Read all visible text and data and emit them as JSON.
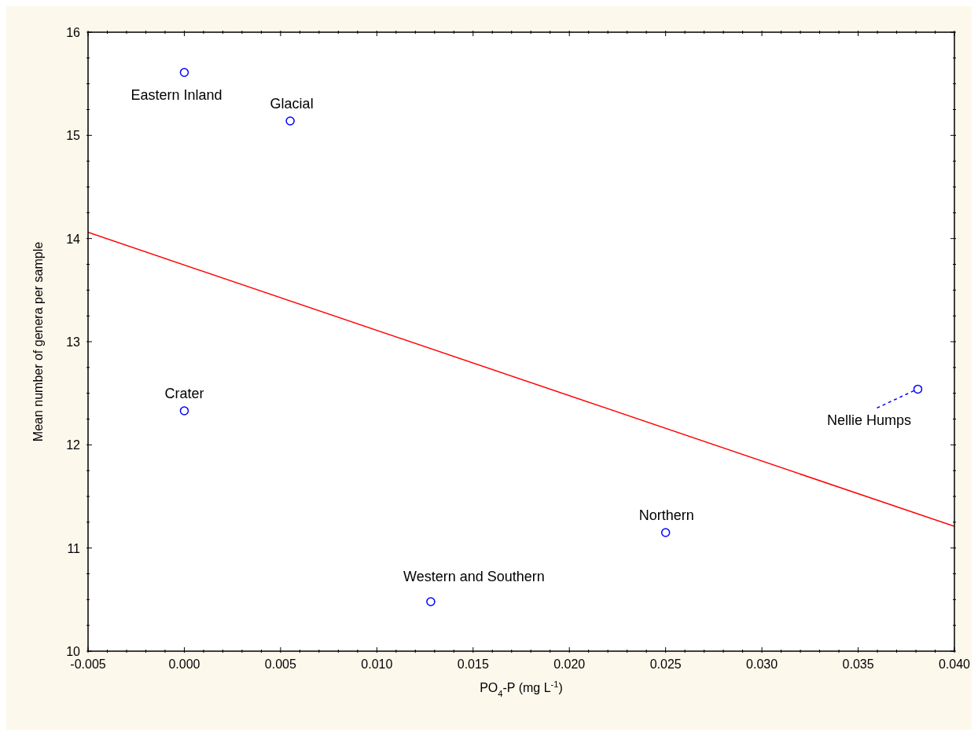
{
  "chart_data": {
    "type": "scatter",
    "xlabel": "PO$_{4}$-P (mg L$^{-1}$)",
    "ylabel": "Mean number of genera per sample",
    "series": [
      {
        "color": "#0000ff",
        "marker": "circle",
        "x": [
          0.0,
          0.0055,
          0.0,
          0.0128,
          0.025,
          0.0381
        ],
        "values": [
          15.61,
          15.14,
          12.33,
          10.48,
          11.15,
          12.54
        ]
      },
      {
        "type": "line",
        "color": "#ff0000",
        "line_style": "solid",
        "x": [
          -0.005,
          0.04
        ],
        "values": [
          14.06,
          11.21
        ]
      }
    ],
    "annotations": [
      {
        "text": "Eastern Inland",
        "x": 0.0,
        "y": 15.61
      },
      {
        "text": "Glacial",
        "x": 0.0055,
        "y": 15.14
      },
      {
        "text": "Crater",
        "x": 0.0,
        "y": 12.33
      },
      {
        "text": "Western and Southern",
        "x": 0.0128,
        "y": 10.48
      },
      {
        "text": "Northern",
        "x": 0.025,
        "y": 11.15
      },
      {
        "text": "Nellie Humps",
        "x": 0.0381,
        "y": 12.54
      }
    ],
    "xlim": [
      -0.005,
      0.04
    ],
    "xticks": [
      {
        "value": -0.005,
        "label": "-0.005"
      },
      {
        "value": -0.004,
        "label": null
      },
      {
        "value": -0.003,
        "label": null
      },
      {
        "value": -0.002,
        "label": null
      },
      {
        "value": -0.001,
        "label": null
      },
      {
        "value": 0,
        "label": "0.000"
      },
      {
        "value": 0.001,
        "label": null
      },
      {
        "value": 0.002,
        "label": null
      },
      {
        "value": 0.003,
        "label": null
      },
      {
        "value": 0.004,
        "label": null
      },
      {
        "value": 0.005,
        "label": "0.005"
      },
      {
        "value": 0.006,
        "label": null
      },
      {
        "value": 0.007,
        "label": null
      },
      {
        "value": 0.008,
        "label": null
      },
      {
        "value": 0.009,
        "label": null
      },
      {
        "value": 0.01,
        "label": "0.010"
      },
      {
        "value": 0.011,
        "label": null
      },
      {
        "value": 0.012,
        "label": null
      },
      {
        "value": 0.013,
        "label": null
      },
      {
        "value": 0.014,
        "label": null
      },
      {
        "value": 0.015,
        "label": "0.015"
      },
      {
        "value": 0.016,
        "label": null
      },
      {
        "value": 0.017,
        "label": null
      },
      {
        "value": 0.018,
        "label": null
      },
      {
        "value": 0.019,
        "label": null
      },
      {
        "value": 0.02,
        "label": "0.020"
      },
      {
        "value": 0.021,
        "label": null
      },
      {
        "value": 0.022,
        "label": null
      },
      {
        "value": 0.023,
        "label": null
      },
      {
        "value": 0.024,
        "label": null
      },
      {
        "value": 0.025,
        "label": "0.025"
      },
      {
        "value": 0.026,
        "label": null
      },
      {
        "value": 0.027,
        "label": null
      },
      {
        "value": 0.028,
        "label": null
      },
      {
        "value": 0.029,
        "label": null
      },
      {
        "value": 0.03,
        "label": "0.030"
      },
      {
        "value": 0.031,
        "label": null
      },
      {
        "value": 0.032,
        "label": null
      },
      {
        "value": 0.033,
        "label": null
      },
      {
        "value": 0.034,
        "label": null
      },
      {
        "value": 0.035,
        "label": "0.035"
      },
      {
        "value": 0.036,
        "label": null
      },
      {
        "value": 0.037,
        "label": null
      },
      {
        "value": 0.038,
        "label": null
      },
      {
        "value": 0.039,
        "label": null
      },
      {
        "value": 0.04,
        "label": "0.040"
      }
    ],
    "ylim": [
      10,
      16
    ],
    "yticks": [
      10,
      {
        "value": 10.25,
        "label": null
      },
      {
        "value": 10.5,
        "label": null
      },
      {
        "value": 10.75,
        "label": null
      },
      11,
      {
        "value": 11.25,
        "label": null
      },
      {
        "value": 11.5,
        "label": null
      },
      {
        "value": 11.75,
        "label": null
      },
      12,
      {
        "value": 12.25,
        "label": null
      },
      {
        "value": 12.5,
        "label": null
      },
      {
        "value": 12.75,
        "label": null
      },
      13,
      {
        "value": 13.25,
        "label": null
      },
      {
        "value": 13.5,
        "label": null
      },
      {
        "value": 13.75,
        "label": null
      },
      14,
      {
        "value": 14.25,
        "label": null
      },
      {
        "value": 14.5,
        "label": null
      },
      {
        "value": 14.75,
        "label": null
      },
      15,
      {
        "value": 15.25,
        "label": null
      },
      {
        "value": 15.5,
        "label": null
      },
      {
        "value": 15.75,
        "label": null
      },
      16
    ]
  }
}
